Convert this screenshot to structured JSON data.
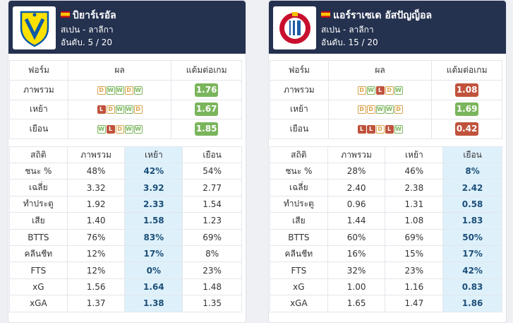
{
  "left": {
    "name": "บิยาร์เรอัล",
    "league": "สเปน - ลาลีกา",
    "rank": "อันดับ. 5 / 20",
    "headers": {
      "form": "ฟอร์ม",
      "result": "ผล",
      "ppg": "แต้มต่อเกม"
    },
    "form_rows": [
      {
        "label": "ภาพรวม",
        "results": [
          "D",
          "W",
          "W",
          "D",
          "W"
        ],
        "ppg": "1.76",
        "ppg_color": "green"
      },
      {
        "label": "เหย้า",
        "results": [
          "L",
          "D",
          "W",
          "W",
          "D"
        ],
        "ppg": "1.67",
        "ppg_color": "green"
      },
      {
        "label": "เยือน",
        "results": [
          "W",
          "L",
          "D",
          "W",
          "W"
        ],
        "ppg": "1.85",
        "ppg_color": "green"
      }
    ],
    "stats_headers": [
      "สถิติ",
      "ภาพรวม",
      "เหย้า",
      "เยือน"
    ],
    "highlight_col": 2,
    "stats_rows": [
      [
        "ชนะ %",
        "48%",
        "42%",
        "54%"
      ],
      [
        "เฉลี่ย",
        "3.32",
        "3.92",
        "2.77"
      ],
      [
        "ทำประตู",
        "1.92",
        "2.33",
        "1.54"
      ],
      [
        "เสีย",
        "1.40",
        "1.58",
        "1.23"
      ],
      [
        "BTTS",
        "76%",
        "83%",
        "69%"
      ],
      [
        "คลีนชีท",
        "12%",
        "17%",
        "8%"
      ],
      [
        "FTS",
        "12%",
        "0%",
        "23%"
      ],
      [
        "xG",
        "1.56",
        "1.64",
        "1.48"
      ],
      [
        "xGA",
        "1.37",
        "1.38",
        "1.35"
      ]
    ]
  },
  "right": {
    "name": "แอร์ราเซเด อัสปัญญ็อล",
    "league": "สเปน - ลาลีกา",
    "rank": "อันดับ. 15 / 20",
    "headers": {
      "form": "ฟอร์ม",
      "result": "ผล",
      "ppg": "แต้มต่อเกม"
    },
    "form_rows": [
      {
        "label": "ภาพรวม",
        "results": [
          "D",
          "W",
          "L",
          "D",
          "W"
        ],
        "ppg": "1.08",
        "ppg_color": "red"
      },
      {
        "label": "เหย้า",
        "results": [
          "D",
          "D",
          "W",
          "W",
          "D"
        ],
        "ppg": "1.69",
        "ppg_color": "green"
      },
      {
        "label": "เยือน",
        "results": [
          "L",
          "L",
          "D",
          "L",
          "W"
        ],
        "ppg": "0.42",
        "ppg_color": "red"
      }
    ],
    "stats_headers": [
      "สถิติ",
      "ภาพรวม",
      "เหย้า",
      "เยือน"
    ],
    "highlight_col": 3,
    "stats_rows": [
      [
        "ชนะ %",
        "28%",
        "46%",
        "8%"
      ],
      [
        "เฉลี่ย",
        "2.40",
        "2.38",
        "2.42"
      ],
      [
        "ทำประตู",
        "0.96",
        "1.31",
        "0.58"
      ],
      [
        "เสีย",
        "1.44",
        "1.08",
        "1.83"
      ],
      [
        "BTTS",
        "60%",
        "69%",
        "50%"
      ],
      [
        "คลีนชีท",
        "16%",
        "15%",
        "17%"
      ],
      [
        "FTS",
        "32%",
        "23%",
        "42%"
      ],
      [
        "xG",
        "1.00",
        "1.16",
        "0.83"
      ],
      [
        "xGA",
        "1.65",
        "1.47",
        "1.86"
      ]
    ]
  },
  "icons": {
    "left_crest": "villarreal-crest-icon",
    "right_crest": "espanyol-crest-icon",
    "flag": "spain-flag-icon"
  },
  "colors": {
    "header_bg": "#24314f",
    "win": "#7ab55c",
    "draw": "#d9a24a",
    "loss": "#c0523c",
    "highlight": "#def1fb"
  }
}
